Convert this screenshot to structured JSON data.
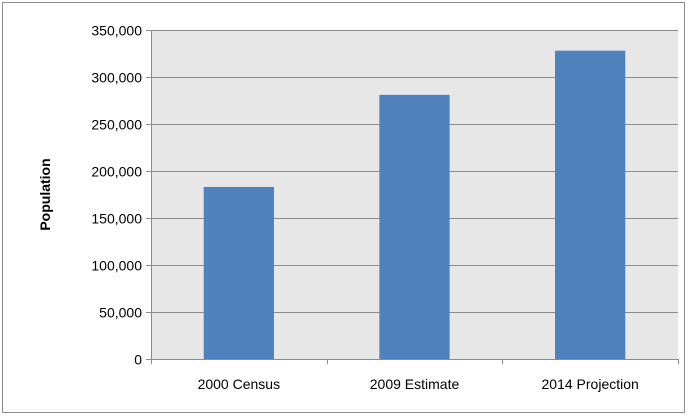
{
  "chart_data": {
    "type": "bar",
    "title": "",
    "xlabel": "",
    "ylabel": "Population",
    "categories": [
      "2000 Census",
      "2009 Estimate",
      "2014 Projection"
    ],
    "values": [
      183000,
      281000,
      328000
    ],
    "ylim": [
      0,
      350000
    ],
    "ytick_values": [
      0,
      50000,
      100000,
      150000,
      200000,
      250000,
      300000,
      350000
    ],
    "ytick_labels": [
      "0",
      "50,000",
      "100,000",
      "150,000",
      "200,000",
      "250,000",
      "300,000",
      "350,000"
    ],
    "grid": true,
    "legend": "none",
    "colors": {
      "bar": "#4f81bd",
      "plot_background": "#e7e7e7",
      "gridline": "#8c8c8c",
      "frame": "#8c8c8c"
    }
  }
}
